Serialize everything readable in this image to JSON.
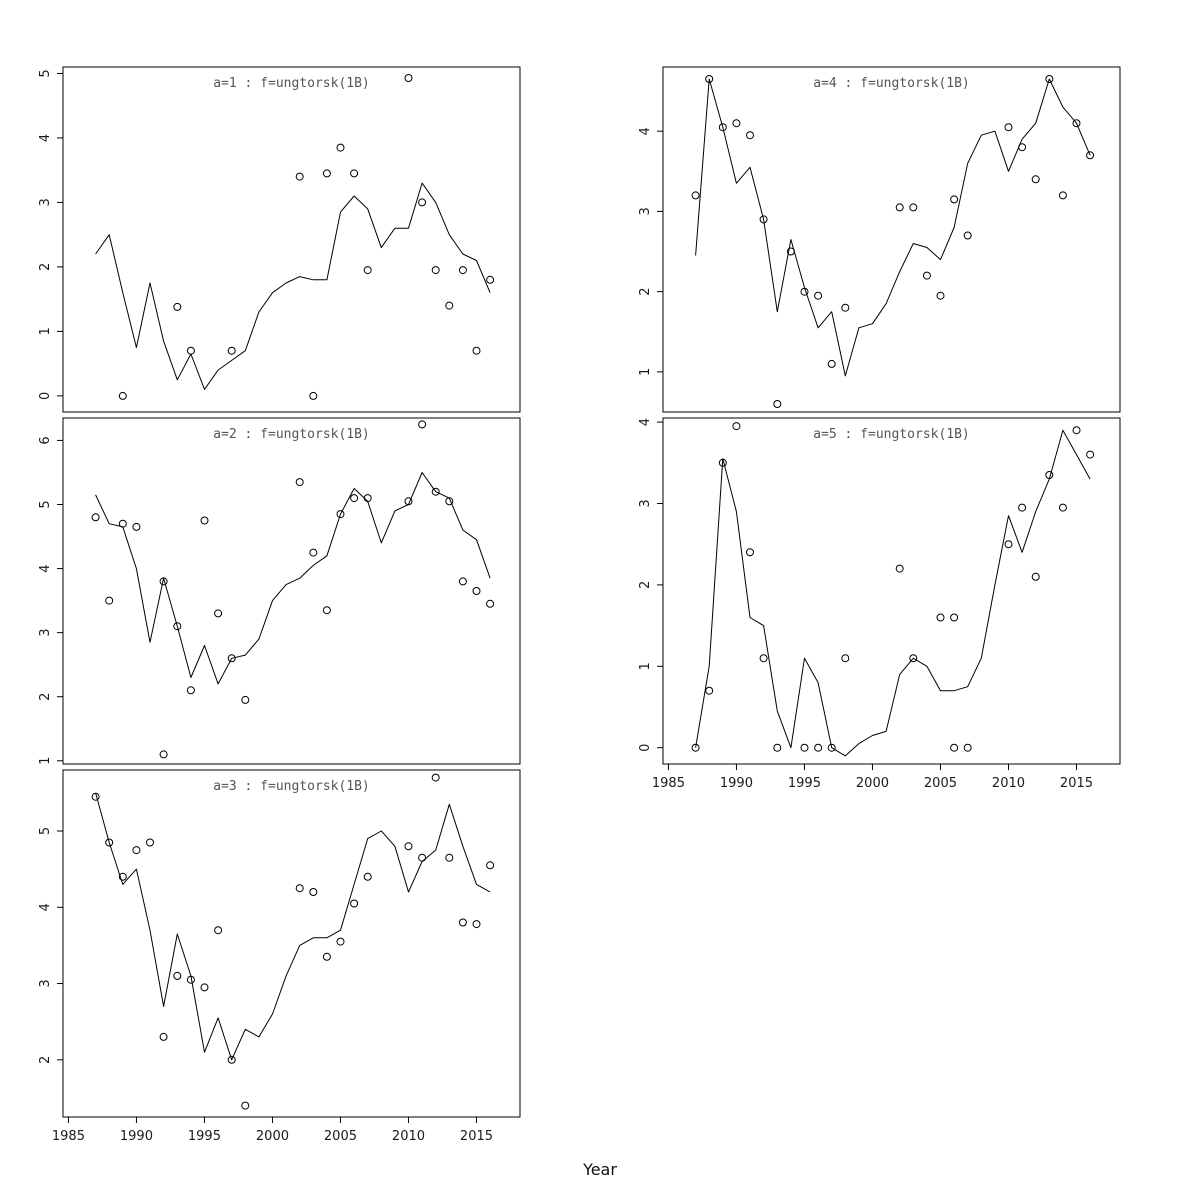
{
  "figure": {
    "xlabel": "Year"
  },
  "chart_data": {
    "type": "line",
    "layout": "trellis, 5 panels in 2 columns, shared x axis, open-circle observations with fitted line",
    "line_color": "#000000",
    "point_style": "open-circle",
    "xlabel": "Year",
    "x_ticks": [
      1985,
      1990,
      1995,
      2000,
      2005,
      2010,
      2015
    ],
    "x_range": [
      1984.6,
      2018.2
    ],
    "years": [
      1987,
      1988,
      1989,
      1990,
      1991,
      1992,
      1993,
      1994,
      1995,
      1996,
      1997,
      1998,
      1999,
      2000,
      2001,
      2002,
      2003,
      2004,
      2005,
      2006,
      2007,
      2008,
      2009,
      2010,
      2011,
      2012,
      2013,
      2014,
      2015,
      2016
    ],
    "panels": [
      {
        "title": "a=1 : f=ungtorsk(1B)",
        "y_ticks": [
          0,
          1,
          2,
          3,
          4,
          5
        ],
        "y_range": [
          -0.25,
          5.1
        ],
        "line": [
          2.2,
          2.5,
          1.6,
          0.75,
          1.75,
          0.85,
          0.25,
          0.65,
          0.1,
          0.4,
          0.55,
          0.7,
          1.3,
          1.6,
          1.75,
          1.85,
          1.8,
          1.8,
          2.85,
          3.1,
          2.9,
          2.3,
          2.6,
          2.6,
          3.3,
          3.0,
          2.5,
          2.2,
          2.1,
          1.6
        ],
        "points": [
          [
            1989,
            0.0
          ],
          [
            1993,
            1.38
          ],
          [
            1994,
            0.7
          ],
          [
            1997,
            0.7
          ],
          [
            2002,
            3.4
          ],
          [
            2003,
            0.0
          ],
          [
            2004,
            3.45
          ],
          [
            2005,
            3.85
          ],
          [
            2006,
            3.45
          ],
          [
            2007,
            1.95
          ],
          [
            2010,
            4.93
          ],
          [
            2011,
            3.0
          ],
          [
            2012,
            1.95
          ],
          [
            2013,
            1.4
          ],
          [
            2014,
            1.95
          ],
          [
            2015,
            0.7
          ],
          [
            2016,
            1.8
          ]
        ]
      },
      {
        "title": "a=2 : f=ungtorsk(1B)",
        "y_ticks": [
          1,
          2,
          3,
          4,
          5,
          6
        ],
        "y_range": [
          0.95,
          6.35
        ],
        "line": [
          5.15,
          4.7,
          4.65,
          4.0,
          2.85,
          3.85,
          3.1,
          2.3,
          2.8,
          2.2,
          2.6,
          2.65,
          2.9,
          3.5,
          3.75,
          3.85,
          4.05,
          4.2,
          4.85,
          5.25,
          5.05,
          4.4,
          4.9,
          5.0,
          5.5,
          5.2,
          5.1,
          4.6,
          4.45,
          3.85
        ],
        "points": [
          [
            1987,
            4.8
          ],
          [
            1988,
            3.5
          ],
          [
            1989,
            4.7
          ],
          [
            1990,
            4.65
          ],
          [
            1992,
            3.8
          ],
          [
            1992,
            1.1
          ],
          [
            1993,
            3.1
          ],
          [
            1994,
            2.1
          ],
          [
            1995,
            4.75
          ],
          [
            1996,
            3.3
          ],
          [
            1997,
            2.6
          ],
          [
            1998,
            1.95
          ],
          [
            2002,
            5.35
          ],
          [
            2003,
            4.25
          ],
          [
            2004,
            3.35
          ],
          [
            2005,
            4.85
          ],
          [
            2006,
            5.1
          ],
          [
            2007,
            5.1
          ],
          [
            2010,
            5.05
          ],
          [
            2011,
            6.25
          ],
          [
            2012,
            5.2
          ],
          [
            2013,
            5.05
          ],
          [
            2014,
            3.8
          ],
          [
            2015,
            3.65
          ],
          [
            2016,
            3.45
          ]
        ]
      },
      {
        "title": "a=3 : f=ungtorsk(1B)",
        "y_ticks": [
          2,
          3,
          4,
          5
        ],
        "y_range": [
          1.25,
          5.8
        ],
        "line": [
          5.5,
          4.85,
          4.3,
          4.5,
          3.7,
          2.7,
          3.65,
          3.1,
          2.1,
          2.55,
          2.0,
          2.4,
          2.3,
          2.6,
          3.1,
          3.5,
          3.6,
          3.6,
          3.7,
          4.3,
          4.9,
          5.0,
          4.8,
          4.2,
          4.6,
          4.75,
          5.35,
          4.8,
          4.3,
          4.2
        ],
        "points": [
          [
            1987,
            5.45
          ],
          [
            1988,
            4.85
          ],
          [
            1989,
            4.4
          ],
          [
            1990,
            4.75
          ],
          [
            1991,
            4.85
          ],
          [
            1992,
            2.3
          ],
          [
            1993,
            3.1
          ],
          [
            1994,
            3.05
          ],
          [
            1995,
            2.95
          ],
          [
            1996,
            3.7
          ],
          [
            1997,
            2.0
          ],
          [
            1998,
            1.4
          ],
          [
            2002,
            4.25
          ],
          [
            2003,
            4.2
          ],
          [
            2004,
            3.35
          ],
          [
            2005,
            3.55
          ],
          [
            2006,
            4.05
          ],
          [
            2007,
            4.4
          ],
          [
            2010,
            4.8
          ],
          [
            2011,
            4.65
          ],
          [
            2012,
            5.7
          ],
          [
            2013,
            4.65
          ],
          [
            2014,
            3.8
          ],
          [
            2015,
            3.78
          ],
          [
            2016,
            4.55
          ]
        ]
      },
      {
        "title": "a=4 : f=ungtorsk(1B)",
        "y_ticks": [
          1,
          2,
          3,
          4
        ],
        "y_range": [
          0.5,
          4.8
        ],
        "line": [
          2.45,
          4.65,
          4.05,
          3.35,
          3.55,
          2.9,
          1.75,
          2.65,
          2.05,
          1.55,
          1.75,
          0.95,
          1.55,
          1.6,
          1.85,
          2.25,
          2.6,
          2.55,
          2.4,
          2.8,
          3.6,
          3.95,
          4.0,
          3.5,
          3.9,
          4.1,
          4.65,
          4.3,
          4.1,
          3.7
        ],
        "points": [
          [
            1987,
            3.2
          ],
          [
            1988,
            4.65
          ],
          [
            1989,
            4.05
          ],
          [
            1990,
            4.1
          ],
          [
            1991,
            3.95
          ],
          [
            1992,
            2.9
          ],
          [
            1993,
            0.6
          ],
          [
            1994,
            2.5
          ],
          [
            1995,
            2.0
          ],
          [
            1996,
            1.95
          ],
          [
            1997,
            1.1
          ],
          [
            1998,
            1.8
          ],
          [
            2002,
            3.05
          ],
          [
            2003,
            3.05
          ],
          [
            2004,
            2.2
          ],
          [
            2005,
            1.95
          ],
          [
            2006,
            3.15
          ],
          [
            2007,
            2.7
          ],
          [
            2010,
            4.05
          ],
          [
            2011,
            3.8
          ],
          [
            2012,
            3.4
          ],
          [
            2013,
            4.65
          ],
          [
            2014,
            3.2
          ],
          [
            2015,
            4.1
          ],
          [
            2016,
            3.7
          ]
        ]
      },
      {
        "title": "a=5 : f=ungtorsk(1B)",
        "y_ticks": [
          0,
          1,
          2,
          3,
          4
        ],
        "y_range": [
          -0.2,
          4.05
        ],
        "line": [
          0.0,
          1.0,
          3.55,
          2.9,
          1.6,
          1.5,
          0.45,
          0.0,
          1.1,
          0.8,
          0.0,
          -0.1,
          0.05,
          0.15,
          0.2,
          0.9,
          1.1,
          1.0,
          0.7,
          0.7,
          0.75,
          1.1,
          2.0,
          2.85,
          2.4,
          2.9,
          3.3,
          3.9,
          3.6,
          3.3
        ],
        "points": [
          [
            1987,
            0.0
          ],
          [
            1988,
            0.7
          ],
          [
            1989,
            3.5
          ],
          [
            1990,
            3.95
          ],
          [
            1991,
            2.4
          ],
          [
            1992,
            1.1
          ],
          [
            1993,
            0.0
          ],
          [
            1995,
            0.0
          ],
          [
            1996,
            0.0
          ],
          [
            1997,
            0.0
          ],
          [
            1998,
            1.1
          ],
          [
            2002,
            2.2
          ],
          [
            2003,
            1.1
          ],
          [
            2005,
            1.6
          ],
          [
            2006,
            1.6
          ],
          [
            2006,
            0.0
          ],
          [
            2007,
            0.0
          ],
          [
            2010,
            2.5
          ],
          [
            2011,
            2.95
          ],
          [
            2012,
            2.1
          ],
          [
            2013,
            3.35
          ],
          [
            2014,
            2.95
          ],
          [
            2015,
            3.9
          ],
          [
            2016,
            3.6
          ]
        ]
      }
    ]
  }
}
